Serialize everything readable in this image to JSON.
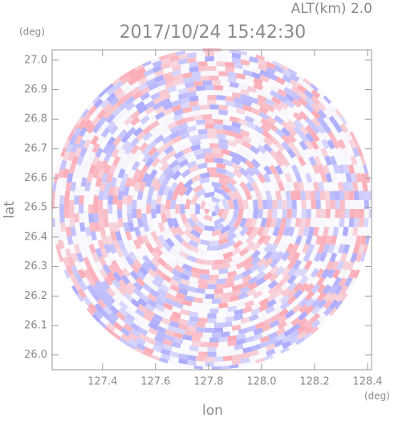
{
  "chart_data": {
    "type": "radar-ppi",
    "title": "2017/10/24 15:42:30",
    "annotation": "ALT(km) 2.0",
    "x_label": "lon",
    "y_label": "lat",
    "x_unit": "(deg)",
    "y_unit": "(deg)",
    "xlim": [
      127.21,
      128.415
    ],
    "ylim": [
      25.95,
      27.035
    ],
    "xticks": [
      127.4,
      127.6,
      127.8,
      {
        "value": 128,
        "label": "128.0"
      },
      128.2,
      128.4
    ],
    "yticks": [
      {
        "value": 26,
        "label": "26.0"
      },
      26.1,
      26.2,
      26.3,
      26.4,
      26.5,
      26.6,
      26.7,
      26.8,
      26.9,
      {
        "value": 27,
        "label": "27.0"
      }
    ]
  }
}
